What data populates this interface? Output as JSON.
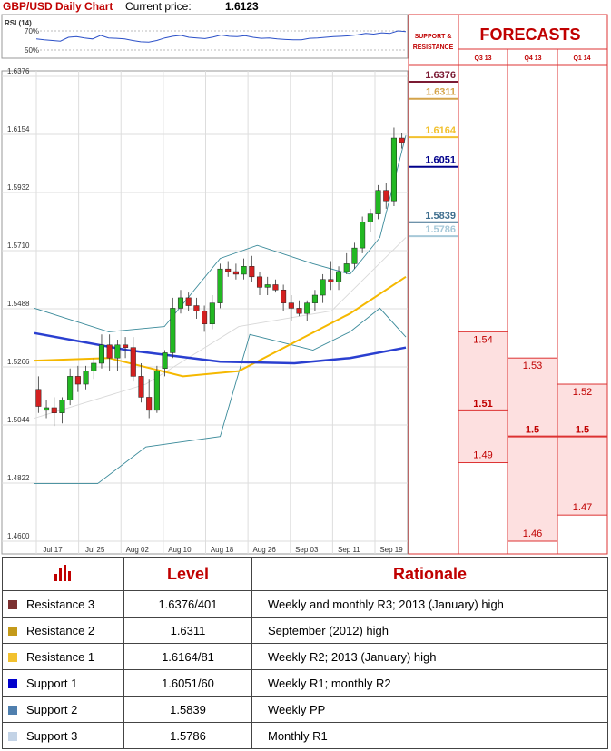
{
  "header": {
    "title": "GBP/USD Daily Chart",
    "price_label": "Current price:",
    "price_value": "1.6123"
  },
  "rsi": {
    "label": "RSI (14)",
    "ticks": [
      "70%",
      "50%"
    ]
  },
  "sr_panel": {
    "title": "SUPPORT & RESISTANCE"
  },
  "forecast_panel": {
    "title": "FORECASTS",
    "quarters": [
      "Q3 13",
      "Q4 13",
      "Q1 14"
    ]
  },
  "chart_data": {
    "type": "candlestick",
    "title": "GBP/USD Daily Chart",
    "ylim": [
      1.46,
      1.6376
    ],
    "yticks": [
      "1.6376",
      "1.6154",
      "1.5932",
      "1.5710",
      "1.5488",
      "1.5266",
      "1.5044",
      "1.4822",
      "1.4600"
    ],
    "xticks": [
      "Jul 17",
      "Jul 25",
      "Aug 02",
      "Aug 10",
      "Aug 18",
      "Aug 26",
      "Sep 03",
      "Sep 11",
      "Sep 19"
    ],
    "candles": [
      [
        1.518,
        1.523,
        1.509,
        1.5115
      ],
      [
        1.51,
        1.514,
        1.507,
        1.511
      ],
      [
        1.511,
        1.515,
        1.504,
        1.509
      ],
      [
        1.509,
        1.515,
        1.505,
        1.514
      ],
      [
        1.514,
        1.526,
        1.512,
        1.523
      ],
      [
        1.523,
        1.527,
        1.517,
        1.52
      ],
      [
        1.52,
        1.527,
        1.518,
        1.525
      ],
      [
        1.525,
        1.53,
        1.522,
        1.528
      ],
      [
        1.528,
        1.539,
        1.526,
        1.535
      ],
      [
        1.535,
        1.539,
        1.525,
        1.53
      ],
      [
        1.53,
        1.537,
        1.525,
        1.535
      ],
      [
        1.535,
        1.538,
        1.53,
        1.534
      ],
      [
        1.534,
        1.538,
        1.521,
        1.523
      ],
      [
        1.523,
        1.528,
        1.513,
        1.515
      ],
      [
        1.515,
        1.522,
        1.507,
        1.51
      ],
      [
        1.51,
        1.527,
        1.509,
        1.525
      ],
      [
        1.526,
        1.533,
        1.523,
        1.532
      ],
      [
        1.532,
        1.553,
        1.53,
        1.549
      ],
      [
        1.549,
        1.556,
        1.547,
        1.553
      ],
      [
        1.553,
        1.555,
        1.548,
        1.55
      ],
      [
        1.55,
        1.553,
        1.545,
        1.548
      ],
      [
        1.548,
        1.55,
        1.54,
        1.543
      ],
      [
        1.543,
        1.554,
        1.541,
        1.551
      ],
      [
        1.551,
        1.566,
        1.549,
        1.564
      ],
      [
        1.564,
        1.567,
        1.561,
        1.563
      ],
      [
        1.563,
        1.566,
        1.56,
        1.562
      ],
      [
        1.562,
        1.568,
        1.56,
        1.565
      ],
      [
        1.565,
        1.569,
        1.559,
        1.561
      ],
      [
        1.561,
        1.563,
        1.554,
        1.557
      ],
      [
        1.557,
        1.561,
        1.554,
        1.558
      ],
      [
        1.558,
        1.56,
        1.555,
        1.556
      ],
      [
        1.556,
        1.558,
        1.548,
        1.551
      ],
      [
        1.551,
        1.554,
        1.544,
        1.549
      ],
      [
        1.549,
        1.552,
        1.546,
        1.547
      ],
      [
        1.547,
        1.552,
        1.544,
        1.551
      ],
      [
        1.551,
        1.556,
        1.548,
        1.554
      ],
      [
        1.554,
        1.562,
        1.551,
        1.56
      ],
      [
        1.56,
        1.567,
        1.556,
        1.559
      ],
      [
        1.559,
        1.565,
        1.556,
        1.563
      ],
      [
        1.563,
        1.57,
        1.562,
        1.566
      ],
      [
        1.566,
        1.574,
        1.564,
        1.572
      ],
      [
        1.572,
        1.584,
        1.57,
        1.582
      ],
      [
        1.582,
        1.587,
        1.578,
        1.585
      ],
      [
        1.585,
        1.596,
        1.583,
        1.594
      ],
      [
        1.594,
        1.597,
        1.587,
        1.59
      ],
      [
        1.59,
        1.618,
        1.588,
        1.614
      ],
      [
        1.614,
        1.616,
        1.61,
        1.6123
      ]
    ],
    "indicators": {
      "sma_long": [
        [
          0,
          1.5395
        ],
        [
          0.25,
          1.533
        ],
        [
          0.5,
          1.5286
        ],
        [
          0.7,
          1.528
        ],
        [
          0.85,
          1.53
        ],
        [
          1.0,
          1.534
        ]
      ],
      "sma_mid": [
        [
          0,
          1.529
        ],
        [
          0.2,
          1.53
        ],
        [
          0.4,
          1.523
        ],
        [
          0.55,
          1.525
        ],
        [
          0.7,
          1.536
        ],
        [
          0.85,
          1.547
        ],
        [
          1.0,
          1.561
        ]
      ],
      "bb_upper": [
        [
          0,
          1.549
        ],
        [
          0.2,
          1.54
        ],
        [
          0.35,
          1.542
        ],
        [
          0.5,
          1.568
        ],
        [
          0.6,
          1.573
        ],
        [
          0.75,
          1.566
        ],
        [
          0.85,
          1.562
        ],
        [
          0.93,
          1.576
        ],
        [
          1.0,
          1.615
        ]
      ],
      "bb_lower": [
        [
          0,
          1.482
        ],
        [
          0.17,
          1.482
        ],
        [
          0.3,
          1.496
        ],
        [
          0.5,
          1.5
        ],
        [
          0.58,
          1.539
        ],
        [
          0.75,
          1.533
        ],
        [
          0.85,
          1.54
        ],
        [
          0.93,
          1.549
        ],
        [
          1.0,
          1.538
        ]
      ],
      "mid_band": [
        [
          0,
          1.507
        ],
        [
          0.3,
          1.52
        ],
        [
          0.55,
          1.542
        ],
        [
          0.8,
          1.548
        ],
        [
          1.0,
          1.576
        ]
      ]
    },
    "rsi_series": [
      0.55,
      0.52,
      0.5,
      0.48,
      0.6,
      0.62,
      0.58,
      0.55,
      0.66,
      0.58,
      0.57,
      0.55,
      0.5,
      0.46,
      0.45,
      0.5,
      0.58,
      0.63,
      0.66,
      0.6,
      0.58,
      0.56,
      0.61,
      0.67,
      0.63,
      0.62,
      0.65,
      0.6,
      0.57,
      0.58,
      0.55,
      0.53,
      0.52,
      0.52,
      0.57,
      0.58,
      0.6,
      0.62,
      0.63,
      0.65,
      0.68,
      0.72,
      0.7,
      0.74,
      0.72,
      0.8,
      0.78
    ],
    "levels": [
      {
        "label": "1.6376",
        "value": 1.6376,
        "color": "#7b1a33"
      },
      {
        "label": "1.6311",
        "value": 1.6311,
        "color": "#d4a34a"
      },
      {
        "label": "1.6164",
        "value": 1.6164,
        "color": "#f2c12e"
      },
      {
        "label": "1.6051",
        "value": 1.6051,
        "color": "#00008b"
      },
      {
        "label": "1.5839",
        "value": 1.5839,
        "color": "#3e6e8e"
      },
      {
        "label": "1.5786",
        "value": 1.5786,
        "color": "#a6c8d8"
      }
    ],
    "forecasts": [
      {
        "quarter": "Q3 13",
        "high": "1.54",
        "mid": "1.51",
        "low": "1.49",
        "high_v": 1.54,
        "mid_v": 1.51,
        "low_v": 1.49
      },
      {
        "quarter": "Q4 13",
        "high": "1.53",
        "mid": "1.5",
        "low": "1.46",
        "high_v": 1.53,
        "mid_v": 1.5,
        "low_v": 1.46
      },
      {
        "quarter": "Q1 14",
        "high": "1.52",
        "mid": "1.5",
        "low": "1.47",
        "high_v": 1.52,
        "mid_v": 1.5,
        "low_v": 1.47
      }
    ]
  },
  "table": {
    "headers": [
      "Level",
      "Rationale"
    ],
    "rows": [
      {
        "name": "Resistance 3",
        "level": "1.6376/401",
        "rationale": "Weekly and monthly R3; 2013 (January) high",
        "color": "#7b3030"
      },
      {
        "name": "Resistance 2",
        "level": "1.6311",
        "rationale": "September (2012) high",
        "color": "#c49a1a"
      },
      {
        "name": "Resistance 1",
        "level": "1.6164/81",
        "rationale": "Weekly R2; 2013 (January) high",
        "color": "#f2c12e"
      },
      {
        "name": "Support 1",
        "level": "1.6051/60",
        "rationale": "Weekly R1; monthly R2",
        "color": "#0000cc"
      },
      {
        "name": "Support 2",
        "level": "1.5839",
        "rationale": "Weekly PP",
        "color": "#4f7fae"
      },
      {
        "name": "Support 3",
        "level": "1.5786",
        "rationale": "Monthly R1",
        "color": "#c3d3e6"
      }
    ]
  }
}
